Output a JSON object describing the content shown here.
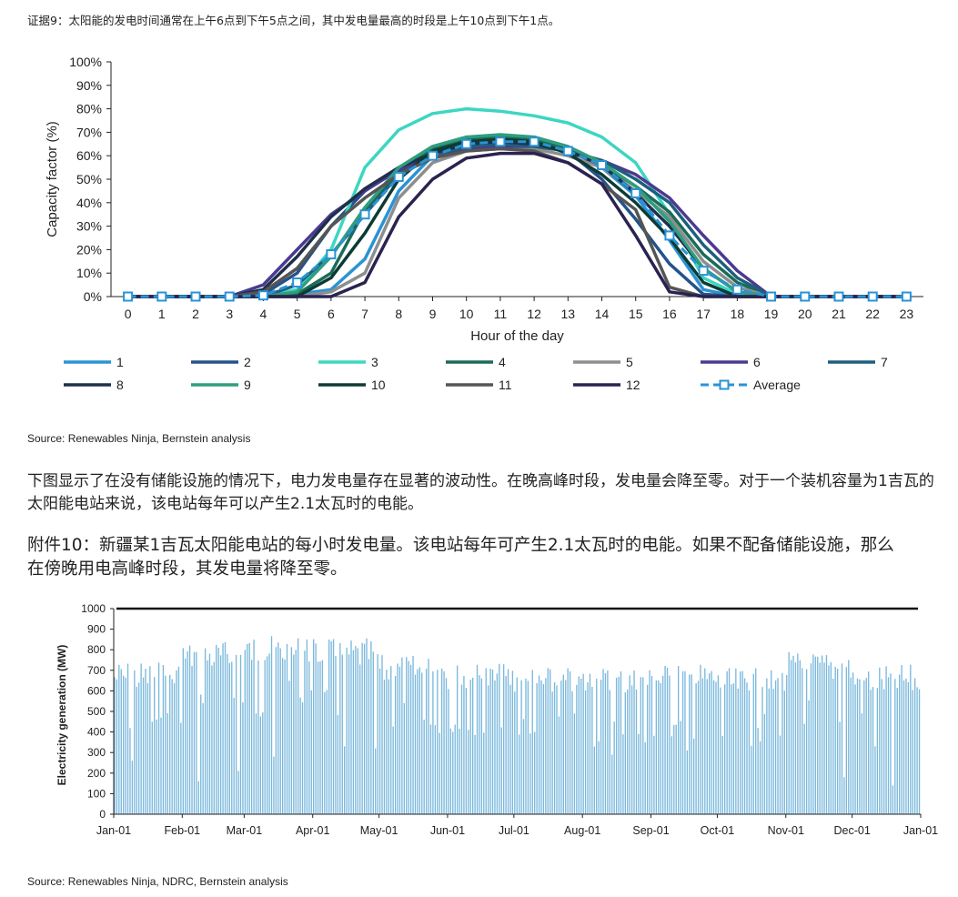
{
  "top_caption": "证据9：太阳能的发电时间通常在上午6点到下午5点之间，其中发电量最高的时段是上午10点到下午1点。",
  "source1": "Source: Renewables Ninja, Bernstein analysis",
  "paragraph": "下图显示了在没有储能设施的情况下，电力发电量存在显著的波动性。在晚高峰时段，发电量会降至零。对于一个装机容量为1吉瓦的太阳能电站来说，该电站每年可以产生2.1太瓦时的电能。",
  "exhibit_title": "附件10：新疆某1吉瓦太阳能电站的每小时发电量。该电站每年可产生2.1太瓦时的电能。如果不配备储能设施，那么在傍晚用电高峰时段，其发电量将降至零。",
  "source2": "Source: Renewables Ninja, NDRC, Bernstein analysis",
  "chart_data": [
    {
      "type": "line",
      "xlabel": "Hour of the day",
      "ylabel": "Capacity factor (%)",
      "ylim": [
        0,
        100
      ],
      "y_ticks": [
        "0%",
        "10%",
        "20%",
        "30%",
        "40%",
        "50%",
        "60%",
        "70%",
        "80%",
        "90%",
        "100%"
      ],
      "x": [
        0,
        1,
        2,
        3,
        4,
        5,
        6,
        7,
        8,
        9,
        10,
        11,
        12,
        13,
        14,
        15,
        16,
        17,
        18,
        19,
        20,
        21,
        22,
        23
      ],
      "legend_position": "bottom",
      "series": [
        {
          "name": "1",
          "color": "#2a93d5",
          "dash": false,
          "values": [
            0,
            0,
            0,
            0,
            0,
            1,
            3,
            16,
            45,
            60,
            64,
            66,
            66,
            63,
            55,
            43,
            24,
            3,
            0,
            0,
            0,
            0,
            0,
            0
          ]
        },
        {
          "name": "2",
          "color": "#25528a",
          "dash": false,
          "values": [
            0,
            0,
            0,
            0,
            1,
            10,
            30,
            45,
            55,
            62,
            66,
            67,
            66,
            62,
            50,
            33,
            14,
            1,
            0,
            0,
            0,
            0,
            0,
            0
          ]
        },
        {
          "name": "3",
          "color": "#3dd6c2",
          "dash": false,
          "values": [
            0,
            0,
            0,
            0,
            0,
            3,
            20,
            55,
            71,
            78,
            80,
            79,
            77,
            74,
            68,
            57,
            35,
            8,
            1,
            0,
            0,
            0,
            0,
            0
          ]
        },
        {
          "name": "4",
          "color": "#1b6b59",
          "dash": false,
          "values": [
            0,
            0,
            0,
            0,
            0,
            1,
            10,
            37,
            53,
            63,
            67,
            68,
            67,
            63,
            56,
            47,
            36,
            18,
            6,
            0,
            0,
            0,
            0,
            0
          ]
        },
        {
          "name": "5",
          "color": "#8e8e8e",
          "dash": false,
          "values": [
            0,
            0,
            0,
            0,
            0,
            0,
            2,
            10,
            42,
            57,
            62,
            63,
            63,
            60,
            55,
            45,
            34,
            15,
            4,
            0,
            0,
            0,
            0,
            0
          ]
        },
        {
          "name": "6",
          "color": "#4b3a8f",
          "dash": false,
          "values": [
            0,
            0,
            0,
            0,
            5,
            20,
            35,
            45,
            54,
            60,
            63,
            64,
            64,
            62,
            58,
            52,
            42,
            26,
            11,
            0,
            0,
            0,
            0,
            0
          ]
        },
        {
          "name": "7",
          "color": "#1d5f7d",
          "dash": false,
          "values": [
            0,
            0,
            0,
            0,
            0,
            5,
            18,
            35,
            52,
            60,
            64,
            65,
            64,
            62,
            58,
            50,
            40,
            22,
            8,
            0,
            0,
            0,
            0,
            0
          ]
        },
        {
          "name": "8",
          "color": "#1e2f4a",
          "dash": false,
          "values": [
            0,
            0,
            0,
            0,
            3,
            17,
            34,
            46,
            55,
            61,
            65,
            66,
            65,
            62,
            56,
            44,
            30,
            12,
            2,
            0,
            0,
            0,
            0,
            0
          ]
        },
        {
          "name": "9",
          "color": "#2f9e7e",
          "dash": false,
          "values": [
            0,
            0,
            0,
            0,
            0,
            2,
            17,
            38,
            55,
            64,
            68,
            69,
            68,
            64,
            57,
            47,
            32,
            12,
            2,
            0,
            0,
            0,
            0,
            0
          ]
        },
        {
          "name": "10",
          "color": "#0d3b33",
          "dash": false,
          "values": [
            0,
            0,
            0,
            0,
            0,
            0,
            8,
            27,
            50,
            62,
            66,
            67,
            66,
            61,
            52,
            40,
            25,
            6,
            0,
            0,
            0,
            0,
            0,
            0
          ]
        },
        {
          "name": "11",
          "color": "#555555",
          "dash": false,
          "values": [
            0,
            0,
            0,
            0,
            2,
            12,
            30,
            42,
            52,
            59,
            62,
            63,
            62,
            57,
            48,
            37,
            4,
            0,
            0,
            0,
            0,
            0,
            0,
            0
          ]
        },
        {
          "name": "12",
          "color": "#2a2350",
          "dash": false,
          "values": [
            0,
            0,
            0,
            0,
            0,
            0,
            0,
            6,
            34,
            50,
            59,
            61,
            61,
            57,
            48,
            26,
            2,
            0,
            0,
            0,
            0,
            0,
            0,
            0
          ]
        },
        {
          "name": "Average",
          "color": "#2a93d5",
          "dash": true,
          "values": [
            0,
            0,
            0,
            0,
            0.5,
            6,
            18,
            35,
            51,
            60,
            65,
            66,
            66,
            62,
            56,
            44,
            26,
            11,
            3,
            0,
            0,
            0,
            0,
            0
          ]
        }
      ]
    },
    {
      "type": "bar",
      "ylabel": "Electricity generation (MW)",
      "ylim": [
        0,
        1000
      ],
      "y_ticks": [
        "0",
        "100",
        "200",
        "300",
        "400",
        "500",
        "600",
        "700",
        "800",
        "900",
        "1000"
      ],
      "x_ticks": [
        "Jan-01",
        "Feb-01",
        "Mar-01",
        "Apr-01",
        "May-01",
        "Jun-01",
        "Jul-01",
        "Aug-01",
        "Sep-01",
        "Oct-01",
        "Nov-01",
        "Dec-01",
        "Jan-01"
      ],
      "capacity_line_value": 1000,
      "bar_color": "#7ab8dc",
      "monthly_typical_max": [
        745,
        845,
        870,
        855,
        775,
        735,
        715,
        720,
        735,
        710,
        790,
        730
      ],
      "days_per_month": [
        31,
        28,
        31,
        30,
        31,
        30,
        31,
        31,
        30,
        31,
        30,
        31
      ],
      "low_days": {
        "8": 260,
        "17": 450,
        "19": 460,
        "21": 470,
        "38": 160,
        "56": 210,
        "64": 490,
        "72": 280,
        "104": 330,
        "118": 320,
        "160": 410,
        "190": 400,
        "225": 290,
        "240": 350,
        "259": 310,
        "275": 380,
        "291": 420,
        "312": 440,
        "330": 180,
        "344": 330,
        "352": 140
      }
    }
  ]
}
